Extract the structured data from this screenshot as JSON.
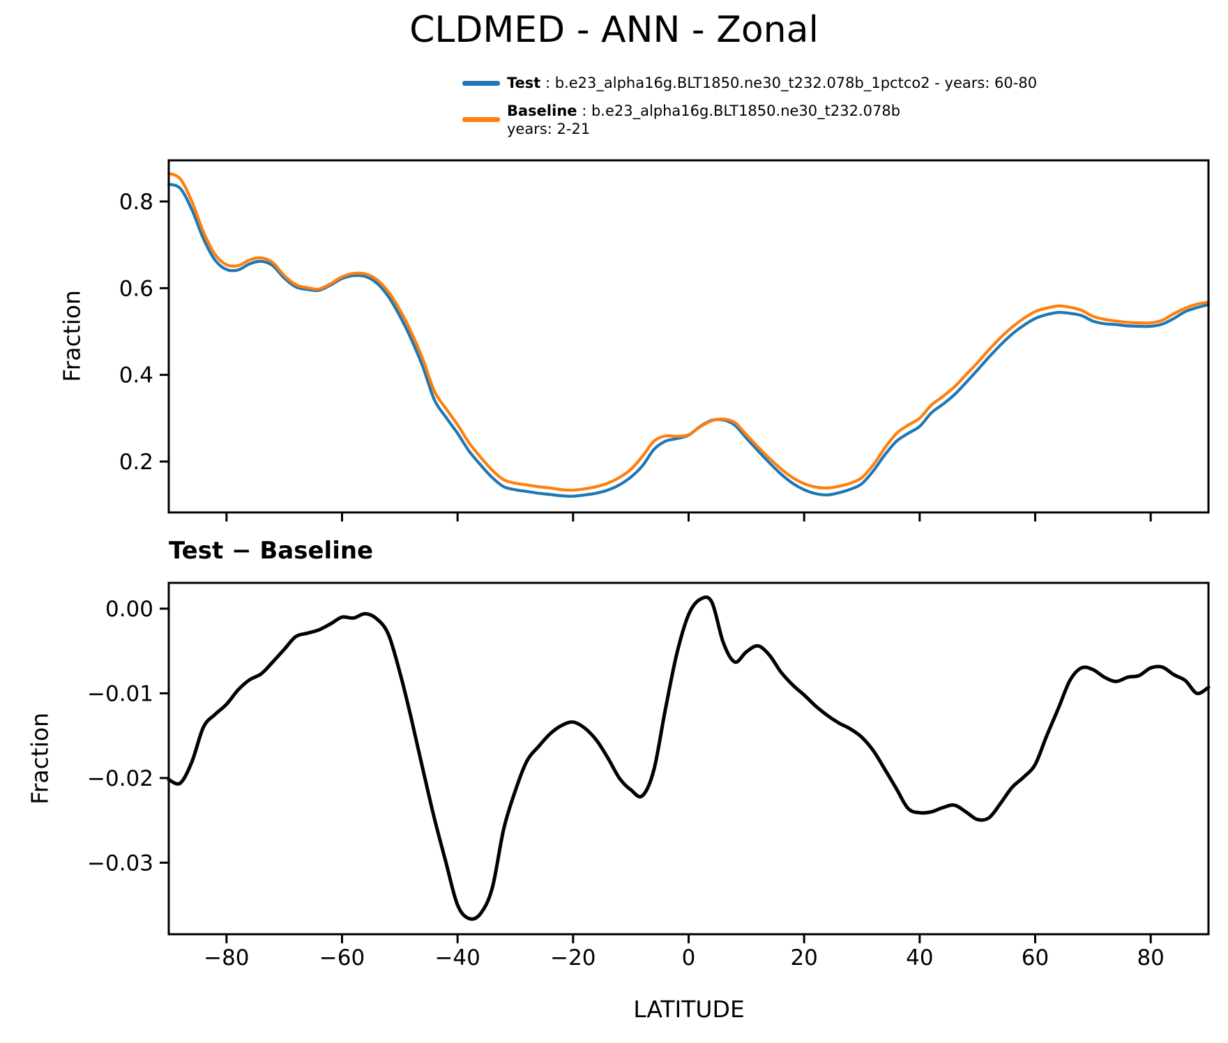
{
  "title": "CLDMED - ANN - Zonal",
  "legend": {
    "items": [
      {
        "name": "Test",
        "rest": " : b.e23_alpha16g.BLT1850.ne30_t232.078b_1pctco2 - years: 60-80",
        "line2": "",
        "color": "#1f77b4"
      },
      {
        "name": "Baseline",
        "rest": " : b.e23_alpha16g.BLT1850.ne30_t232.078b",
        "line2": "years: 2-21",
        "color": "#ff7f0e"
      }
    ]
  },
  "subtitle_bottom_panel": "Test − Baseline",
  "colors": {
    "test": "#1f77b4",
    "baseline": "#ff7f0e",
    "diff": "#000000",
    "axes": "#000000"
  },
  "chart_data": [
    {
      "panel": "top",
      "type": "line",
      "title": "",
      "xlabel": "",
      "ylabel": "Fraction",
      "xlim": [
        -90,
        90
      ],
      "ylim": [
        0.08,
        0.895
      ],
      "grid": false,
      "legend_position": "above-figure",
      "xticks": [
        -80,
        -60,
        -40,
        -20,
        0,
        20,
        40,
        60,
        80
      ],
      "xtick_labels": [
        "",
        "",
        "",
        "",
        "",
        "",
        "",
        "",
        ""
      ],
      "yticks": [
        0.8,
        0.6,
        0.4,
        0.2
      ],
      "ytick_labels": [
        "0.8",
        "0.6",
        "0.4",
        "0.2"
      ],
      "x": [
        -90,
        -88,
        -86,
        -84,
        -82,
        -80,
        -78,
        -76,
        -74,
        -72,
        -70,
        -68,
        -66,
        -64,
        -62,
        -60,
        -58,
        -56,
        -54,
        -52,
        -50,
        -48,
        -46,
        -44,
        -42,
        -40,
        -38,
        -36,
        -34,
        -32,
        -30,
        -28,
        -26,
        -24,
        -22,
        -20,
        -18,
        -16,
        -14,
        -12,
        -10,
        -8,
        -6,
        -4,
        -2,
        0,
        2,
        4,
        6,
        8,
        10,
        12,
        14,
        16,
        18,
        20,
        22,
        24,
        26,
        28,
        30,
        32,
        34,
        36,
        38,
        40,
        42,
        44,
        46,
        48,
        50,
        52,
        54,
        56,
        58,
        60,
        62,
        64,
        66,
        68,
        70,
        72,
        74,
        76,
        78,
        80,
        82,
        84,
        86,
        88,
        90
      ],
      "series": [
        {
          "name": "Test",
          "color": "#1f77b4",
          "values": [
            0.84,
            0.83,
            0.781,
            0.714,
            0.665,
            0.643,
            0.642,
            0.656,
            0.662,
            0.652,
            0.623,
            0.603,
            0.597,
            0.595,
            0.607,
            0.622,
            0.629,
            0.627,
            0.612,
            0.581,
            0.536,
            0.482,
            0.418,
            0.342,
            0.302,
            0.265,
            0.224,
            0.192,
            0.163,
            0.142,
            0.135,
            0.131,
            0.127,
            0.124,
            0.121,
            0.12,
            0.123,
            0.127,
            0.134,
            0.146,
            0.164,
            0.19,
            0.228,
            0.247,
            0.253,
            0.261,
            0.281,
            0.295,
            0.296,
            0.284,
            0.254,
            0.225,
            0.197,
            0.171,
            0.15,
            0.135,
            0.126,
            0.123,
            0.128,
            0.136,
            0.149,
            0.179,
            0.216,
            0.247,
            0.265,
            0.281,
            0.312,
            0.332,
            0.354,
            0.382,
            0.411,
            0.441,
            0.469,
            0.494,
            0.514,
            0.53,
            0.539,
            0.544,
            0.542,
            0.537,
            0.524,
            0.518,
            0.516,
            0.513,
            0.512,
            0.512,
            0.517,
            0.53,
            0.546,
            0.555,
            0.562
          ]
        },
        {
          "name": "Baseline",
          "color": "#ff7f0e",
          "values": [
            0.865,
            0.852,
            0.8,
            0.73,
            0.678,
            0.654,
            0.652,
            0.665,
            0.67,
            0.659,
            0.629,
            0.608,
            0.601,
            0.598,
            0.61,
            0.626,
            0.634,
            0.633,
            0.62,
            0.592,
            0.55,
            0.498,
            0.436,
            0.362,
            0.322,
            0.285,
            0.243,
            0.21,
            0.18,
            0.158,
            0.15,
            0.146,
            0.142,
            0.139,
            0.135,
            0.134,
            0.137,
            0.142,
            0.15,
            0.163,
            0.182,
            0.212,
            0.247,
            0.259,
            0.258,
            0.262,
            0.28,
            0.294,
            0.298,
            0.29,
            0.262,
            0.234,
            0.207,
            0.183,
            0.163,
            0.149,
            0.141,
            0.139,
            0.143,
            0.15,
            0.163,
            0.193,
            0.232,
            0.265,
            0.284,
            0.3,
            0.33,
            0.35,
            0.372,
            0.4,
            0.428,
            0.458,
            0.486,
            0.51,
            0.53,
            0.546,
            0.554,
            0.559,
            0.556,
            0.549,
            0.535,
            0.528,
            0.524,
            0.521,
            0.52,
            0.52,
            0.526,
            0.541,
            0.554,
            0.563,
            0.568
          ]
        }
      ]
    },
    {
      "panel": "bottom",
      "type": "line",
      "title": "Test − Baseline",
      "xlabel": "LATITUDE",
      "ylabel": "Fraction",
      "xlim": [
        -90,
        90
      ],
      "ylim": [
        -0.0385,
        0.003
      ],
      "grid": false,
      "xticks": [
        -80,
        -60,
        -40,
        -20,
        0,
        20,
        40,
        60,
        80
      ],
      "xtick_labels": [
        "−80",
        "−60",
        "−40",
        "−20",
        "0",
        "20",
        "40",
        "60",
        "80"
      ],
      "yticks": [
        0.0,
        -0.01,
        -0.02,
        -0.03
      ],
      "ytick_labels": [
        "0.00",
        "−0.01",
        "−0.02",
        "−0.03"
      ],
      "x": [
        -90,
        -88,
        -86,
        -84,
        -82,
        -80,
        -78,
        -76,
        -74,
        -72,
        -70,
        -68,
        -66,
        -64,
        -62,
        -60,
        -58,
        -56,
        -54,
        -52,
        -50,
        -48,
        -46,
        -44,
        -42,
        -40,
        -38,
        -36,
        -34,
        -32,
        -30,
        -28,
        -26,
        -24,
        -22,
        -20,
        -18,
        -16,
        -14,
        -12,
        -10,
        -8,
        -6,
        -4,
        -2,
        0,
        2,
        4,
        6,
        8,
        10,
        12,
        14,
        16,
        18,
        20,
        22,
        24,
        26,
        28,
        30,
        32,
        34,
        36,
        38,
        40,
        42,
        44,
        46,
        48,
        50,
        52,
        54,
        56,
        58,
        60,
        62,
        64,
        66,
        68,
        70,
        72,
        74,
        76,
        78,
        80,
        82,
        84,
        86,
        88,
        90
      ],
      "series": [
        {
          "name": "Test − Baseline",
          "color": "#000000",
          "values": [
            -0.0202,
            -0.0206,
            -0.0181,
            -0.014,
            -0.0125,
            -0.0113,
            -0.0096,
            -0.0084,
            -0.0077,
            -0.0063,
            -0.0048,
            -0.0033,
            -0.0029,
            -0.0025,
            -0.0018,
            -0.001,
            -0.0011,
            -0.0006,
            -0.0012,
            -0.003,
            -0.0075,
            -0.013,
            -0.019,
            -0.0248,
            -0.03,
            -0.035,
            -0.0366,
            -0.036,
            -0.033,
            -0.026,
            -0.0215,
            -0.018,
            -0.0163,
            -0.0148,
            -0.0138,
            -0.0134,
            -0.0141,
            -0.0155,
            -0.0176,
            -0.02,
            -0.0214,
            -0.0221,
            -0.019,
            -0.0118,
            -0.0052,
            -0.0007,
            0.0011,
            0.0008,
            -0.004,
            -0.0063,
            -0.0051,
            -0.0044,
            -0.0055,
            -0.0075,
            -0.009,
            -0.0102,
            -0.0115,
            -0.0126,
            -0.0135,
            -0.0142,
            -0.0152,
            -0.0168,
            -0.019,
            -0.0213,
            -0.0236,
            -0.0241,
            -0.024,
            -0.0235,
            -0.0232,
            -0.024,
            -0.0249,
            -0.0247,
            -0.023,
            -0.0211,
            -0.0199,
            -0.0184,
            -0.015,
            -0.0118,
            -0.0085,
            -0.007,
            -0.0072,
            -0.0081,
            -0.0086,
            -0.0081,
            -0.0079,
            -0.007,
            -0.0069,
            -0.0078,
            -0.0085,
            -0.01,
            -0.0093
          ]
        }
      ]
    }
  ]
}
